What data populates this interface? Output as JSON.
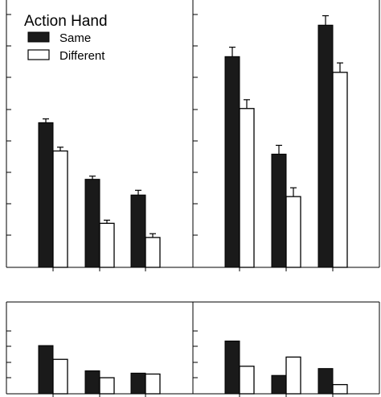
{
  "legend": {
    "title": "Action Hand",
    "items": [
      {
        "label": "Same",
        "color": "#1a1a1a"
      },
      {
        "label": "Different",
        "color": "#ffffff"
      }
    ]
  },
  "chart_data": [
    {
      "type": "bar",
      "panel": "top-left",
      "categories": [
        "",
        "",
        ""
      ],
      "ylim": [
        0,
        8.5
      ],
      "grid": false,
      "legend_position": "top-left",
      "series": [
        {
          "name": "Same",
          "values": [
            4.6,
            2.8,
            2.3
          ],
          "errors": [
            0.12,
            0.1,
            0.15
          ],
          "color": "#1a1a1a"
        },
        {
          "name": "Different",
          "values": [
            3.7,
            1.4,
            0.95
          ],
          "errors": [
            0.12,
            0.1,
            0.12
          ],
          "color": "#ffffff"
        }
      ]
    },
    {
      "type": "bar",
      "panel": "top-right",
      "categories": [
        "",
        "",
        ""
      ],
      "ylim": [
        0,
        8.5
      ],
      "grid": false,
      "series": [
        {
          "name": "Same",
          "values": [
            6.7,
            3.6,
            7.7
          ],
          "errors": [
            0.3,
            0.28,
            0.3
          ],
          "color": "#1a1a1a"
        },
        {
          "name": "Different",
          "values": [
            5.05,
            2.25,
            6.2
          ],
          "errors": [
            0.28,
            0.28,
            0.3
          ],
          "color": "#ffffff"
        }
      ]
    },
    {
      "type": "bar",
      "panel": "bottom-left",
      "categories": [
        "",
        "",
        ""
      ],
      "ylim": [
        0,
        2
      ],
      "grid": false,
      "series": [
        {
          "name": "Same",
          "values": [
            1.05,
            0.5,
            0.45
          ],
          "color": "#1a1a1a"
        },
        {
          "name": "Different",
          "values": [
            0.75,
            0.35,
            0.43
          ],
          "color": "#ffffff"
        }
      ]
    },
    {
      "type": "bar",
      "panel": "bottom-right",
      "categories": [
        "",
        "",
        ""
      ],
      "ylim": [
        0,
        2
      ],
      "grid": false,
      "series": [
        {
          "name": "Same",
          "values": [
            1.15,
            0.4,
            0.55
          ],
          "color": "#1a1a1a"
        },
        {
          "name": "Different",
          "values": [
            0.6,
            0.8,
            0.2
          ],
          "color": "#ffffff"
        }
      ]
    }
  ]
}
